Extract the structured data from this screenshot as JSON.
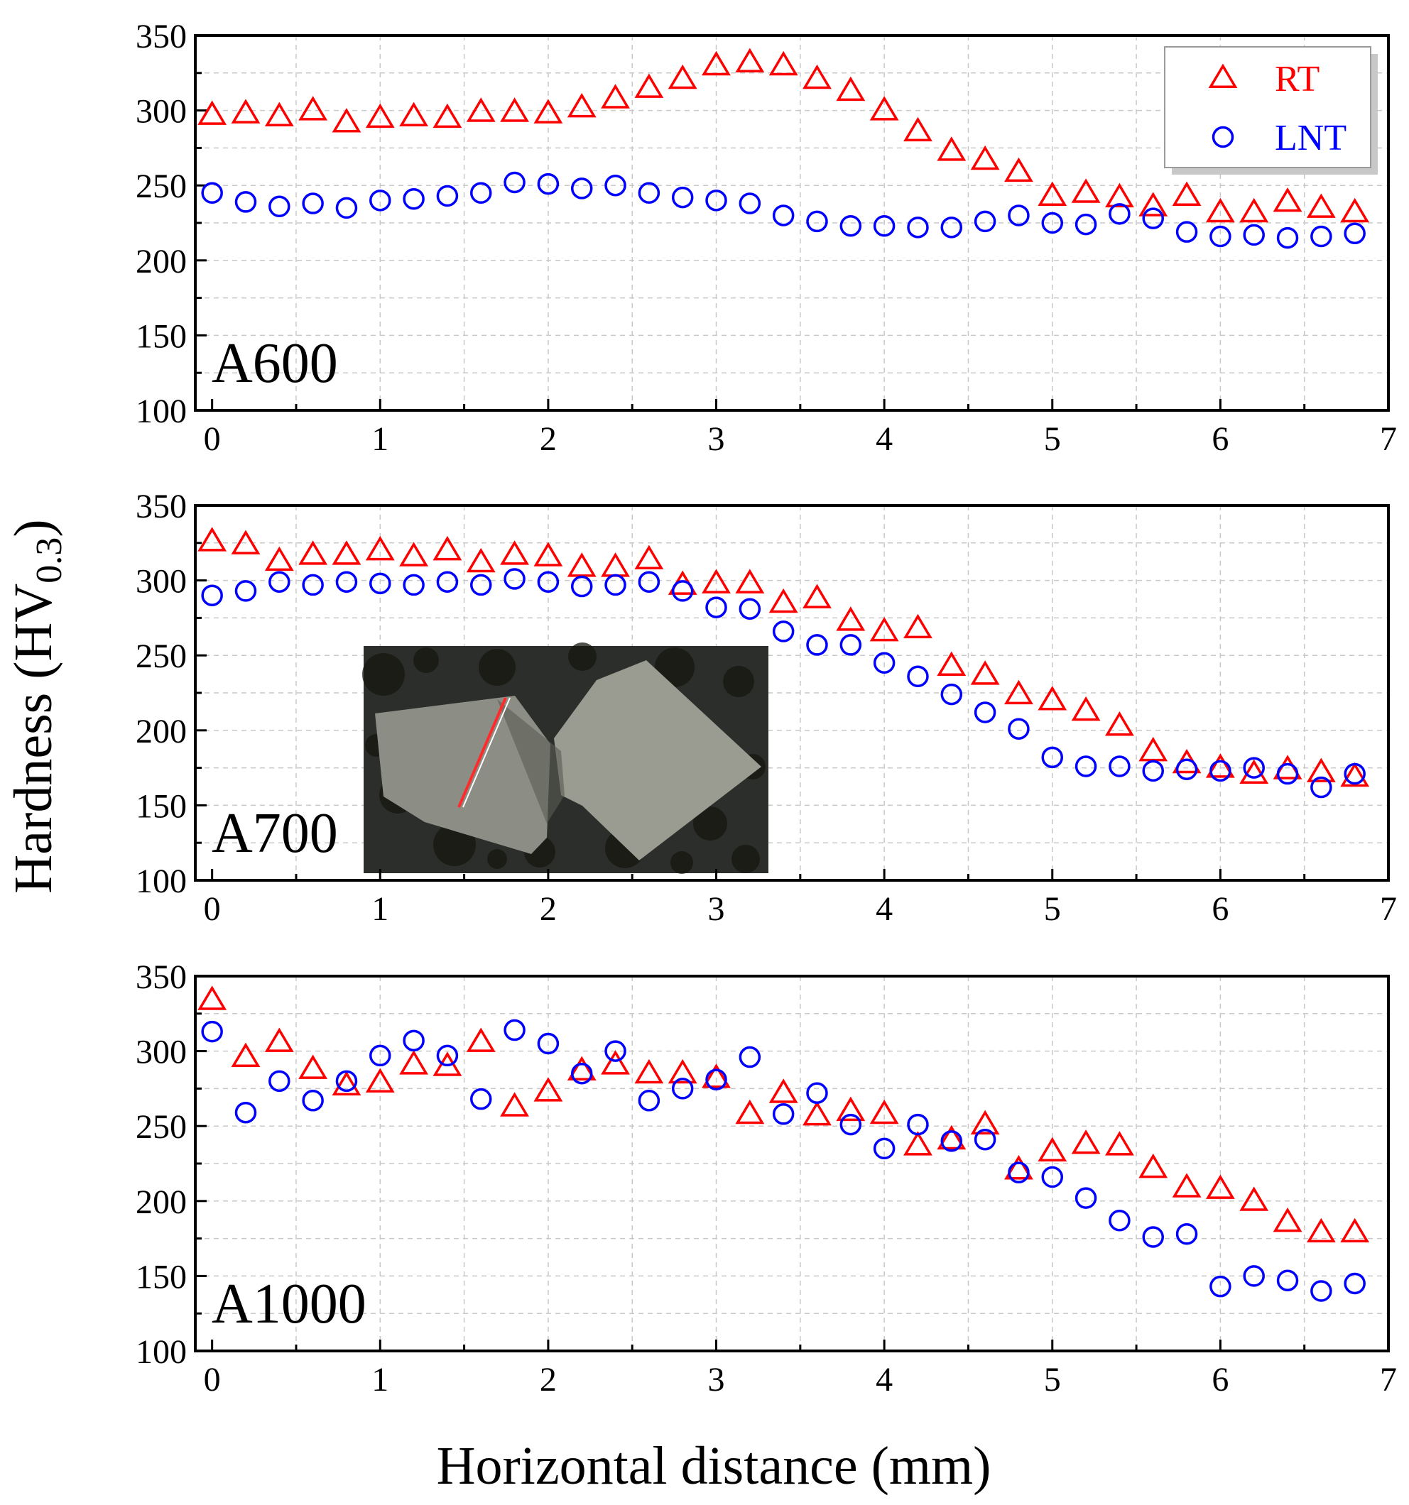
{
  "colors": {
    "RT": "#ff0000",
    "LNT": "#0000ff"
  },
  "chart_data": {
    "type": "scatter",
    "xlabel": "Horizontal distance (mm)",
    "ylabel_main": "Hardness (HV",
    "ylabel_sub": "0.3",
    "ylabel_close": ")",
    "xlim": [
      -0.1,
      7
    ],
    "ylim": [
      100,
      350
    ],
    "xticks": [
      "0",
      "1",
      "2",
      "3",
      "4",
      "5",
      "6",
      "7"
    ],
    "yticks": [
      "100",
      "150",
      "200",
      "250",
      "300",
      "350"
    ],
    "legend": {
      "position": "top-right",
      "entries": [
        "RT",
        "LNT"
      ]
    },
    "x": [
      0,
      0.2,
      0.4,
      0.6,
      0.8,
      1.0,
      1.2,
      1.4,
      1.6,
      1.8,
      2.0,
      2.2,
      2.4,
      2.6,
      2.8,
      3.0,
      3.2,
      3.4,
      3.6,
      3.8,
      4.0,
      4.2,
      4.4,
      4.6,
      4.8,
      5.0,
      5.2,
      5.4,
      5.6,
      5.8,
      6.0,
      6.2,
      6.4,
      6.6,
      6.8
    ],
    "panels": [
      {
        "label": "A600",
        "series": [
          {
            "name": "RT",
            "marker": "triangle",
            "values": [
              297,
              298,
              296,
              300,
              292,
              295,
              296,
              295,
              299,
              299,
              298,
              302,
              308,
              315,
              321,
              330,
              332,
              330,
              321,
              313,
              300,
              286,
              273,
              267,
              259,
              243,
              245,
              242,
              236,
              243,
              232,
              232,
              239,
              235,
              232
            ]
          },
          {
            "name": "LNT",
            "marker": "circle",
            "values": [
              245,
              239,
              236,
              238,
              235,
              240,
              241,
              243,
              245,
              252,
              251,
              248,
              250,
              245,
              242,
              240,
              238,
              230,
              226,
              223,
              223,
              222,
              222,
              226,
              230,
              225,
              224,
              231,
              228,
              219,
              216,
              217,
              215,
              216,
              218
            ]
          }
        ]
      },
      {
        "label": "A700",
        "has_inset_photo": true,
        "series": [
          {
            "name": "RT",
            "marker": "triangle",
            "values": [
              326,
              324,
              313,
              317,
              317,
              320,
              316,
              320,
              312,
              317,
              316,
              309,
              309,
              314,
              297,
              298,
              298,
              285,
              288,
              273,
              266,
              268,
              243,
              237,
              224,
              220,
              213,
              203,
              186,
              178,
              175,
              171,
              174,
              172,
              169
            ]
          },
          {
            "name": "LNT",
            "marker": "circle",
            "values": [
              290,
              293,
              299,
              297,
              299,
              298,
              297,
              299,
              297,
              301,
              299,
              296,
              297,
              299,
              293,
              282,
              281,
              266,
              257,
              257,
              245,
              236,
              224,
              212,
              201,
              182,
              176,
              176,
              173,
              174,
              173,
              175,
              171,
              162,
              171
            ]
          }
        ]
      },
      {
        "label": "A1000",
        "series": [
          {
            "name": "RT",
            "marker": "triangle",
            "values": [
              334,
              296,
              306,
              288,
              277,
              279,
              291,
              290,
              306,
              263,
              273,
              287,
              291,
              285,
              285,
              282,
              258,
              272,
              257,
              260,
              258,
              237,
              241,
              251,
              221,
              233,
              238,
              237,
              222,
              209,
              208,
              200,
              186,
              179,
              179
            ]
          },
          {
            "name": "LNT",
            "marker": "circle",
            "values": [
              313,
              259,
              280,
              267,
              280,
              297,
              307,
              297,
              268,
              314,
              305,
              285,
              300,
              267,
              275,
              281,
              296,
              258,
              272,
              251,
              235,
              251,
              240,
              241,
              219,
              216,
              202,
              187,
              176,
              178,
              143,
              150,
              147,
              140,
              145
            ]
          }
        ]
      }
    ]
  }
}
